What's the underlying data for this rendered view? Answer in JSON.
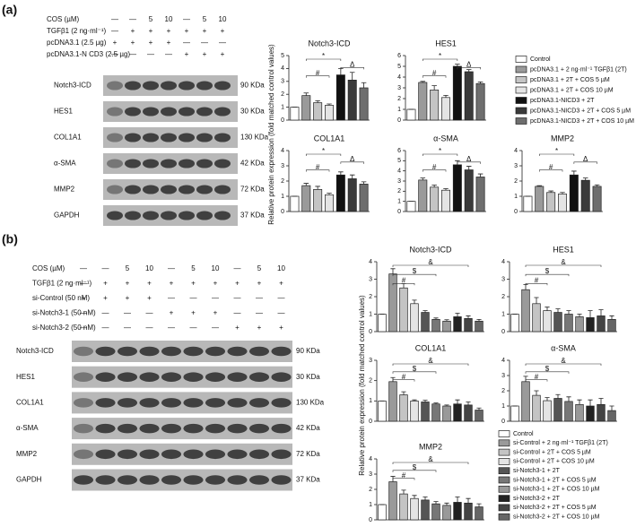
{
  "panels": [
    {
      "label": "(a)",
      "y_label": "Relative protein expression (fold matched control values)",
      "treatments": [
        {
          "name": "COS (µM)",
          "cells": [
            "—",
            "—",
            "5",
            "10",
            "—",
            "5",
            "10"
          ]
        },
        {
          "name": "TGFβ1 (2 ng·ml⁻¹)",
          "cells": [
            "—",
            "+",
            "+",
            "+",
            "+",
            "+",
            "+"
          ]
        },
        {
          "name": "pcDNA3.1 (2.5 µg)",
          "cells": [
            "+",
            "+",
            "+",
            "+",
            "—",
            "—",
            "—"
          ]
        },
        {
          "name": "pcDNA3.1-N CD3 (2.5 µg)",
          "cells": [
            "—",
            "—",
            "—",
            "—",
            "+",
            "+",
            "+"
          ]
        }
      ],
      "blots": [
        {
          "name": "Notch3-ICD",
          "size": "90 KDa"
        },
        {
          "name": "HES1",
          "size": "30 KDa"
        },
        {
          "name": "COL1A1",
          "size": "130 KDa"
        },
        {
          "name": "α-SMA",
          "size": "42 KDa"
        },
        {
          "name": "MMP2",
          "size": "72 KDa"
        },
        {
          "name": "GAPDH",
          "size": "37 KDa"
        }
      ],
      "legend": [
        {
          "name": "Control",
          "color": "#ffffff"
        },
        {
          "name": "pcDNA3.1 + 2 ng·ml⁻¹ TGFβ1 (2T)",
          "color": "#9a9a9a"
        },
        {
          "name": "pcDNA3.1 + 2T + COS 5 µM",
          "color": "#c4c4c4"
        },
        {
          "name": "pcDNA3.1 + 2T + COS 10 µM",
          "color": "#e4e4e4"
        },
        {
          "name": "pcDNA3.1-NICD3 + 2T",
          "color": "#111111"
        },
        {
          "name": "pcDNA3.1-NICD3 + 2T + COS 5 µM",
          "color": "#3a3a3a"
        },
        {
          "name": "pcDNA3.1-NICD3 + 2T + COS 10 µM",
          "color": "#6e6e6e"
        }
      ]
    },
    {
      "label": "(b)",
      "y_label": "Relative protein expression (fold matched control values)",
      "treatments": [
        {
          "name": "COS (µM)",
          "cells": [
            "—",
            "—",
            "5",
            "10",
            "—",
            "5",
            "10",
            "—",
            "5",
            "10"
          ]
        },
        {
          "name": "TGFβ1 (2 ng·ml⁻¹)",
          "cells": [
            "—",
            "+",
            "+",
            "+",
            "+",
            "+",
            "+",
            "+",
            "+",
            "+"
          ]
        },
        {
          "name": "si-Control (50 nM)",
          "cells": [
            "+",
            "+",
            "+",
            "+",
            "—",
            "—",
            "—",
            "—",
            "—",
            "—"
          ]
        },
        {
          "name": "si-Notch3-1 (50 nM)",
          "cells": [
            "—",
            "—",
            "—",
            "—",
            "+",
            "+",
            "+",
            "—",
            "—",
            "—"
          ]
        },
        {
          "name": "si-Notch3-2 (50 nM)",
          "cells": [
            "—",
            "—",
            "—",
            "—",
            "—",
            "—",
            "—",
            "+",
            "+",
            "+"
          ]
        }
      ],
      "blots": [
        {
          "name": "Notch3-ICD",
          "size": "90 KDa"
        },
        {
          "name": "HES1",
          "size": "30 KDa"
        },
        {
          "name": "COL1A1",
          "size": "130 KDa"
        },
        {
          "name": "α-SMA",
          "size": "42 KDa"
        },
        {
          "name": "MMP2",
          "size": "72 KDa"
        },
        {
          "name": "GAPDH",
          "size": "37 KDa"
        }
      ],
      "legend": [
        {
          "name": "Control",
          "color": "#ffffff"
        },
        {
          "name": "si-Control + 2 ng·ml⁻¹ TGFβ1 (2T)",
          "color": "#9a9a9a"
        },
        {
          "name": "si-Control + 2T + COS 5 µM",
          "color": "#c4c4c4"
        },
        {
          "name": "si-Control + 2T + COS 10 µM",
          "color": "#e4e4e4"
        },
        {
          "name": "si-Notch3-1 + 2T",
          "color": "#555555"
        },
        {
          "name": "si-Notch3-1 + 2T + COS 5 µM",
          "color": "#777777"
        },
        {
          "name": "si-Notch3-1 + 2T + COS 10 µM",
          "color": "#999999"
        },
        {
          "name": "si-Notch3-2 + 2T",
          "color": "#222222"
        },
        {
          "name": "si-Notch3-2 + 2T + COS 5 µM",
          "color": "#444444"
        },
        {
          "name": "si-Notch3-2 + 2T + COS 10 µM",
          "color": "#666666"
        }
      ]
    }
  ],
  "chart_data": [
    {
      "type": "bar",
      "title": "Notch3-ICD",
      "values": [
        1,
        1.9,
        1.35,
        1.15,
        3.5,
        3.1,
        2.5
      ],
      "errors": [
        0,
        0.2,
        0.15,
        0.1,
        0.5,
        0.6,
        0.4
      ],
      "ylim": [
        0,
        5
      ],
      "yticks": [
        0,
        1,
        2,
        3,
        4,
        5
      ],
      "annotations": [
        {
          "label": "#",
          "from": 1,
          "to": 3
        },
        {
          "label": "Δ",
          "from": 4,
          "to": 6
        },
        {
          "label": "*",
          "from": 1,
          "to": 4
        }
      ]
    },
    {
      "type": "bar",
      "title": "HES1",
      "values": [
        1,
        3.5,
        2.8,
        2.1,
        5,
        4.5,
        3.4
      ],
      "errors": [
        0,
        0.1,
        0.4,
        0.2,
        0.2,
        0.2,
        0.15
      ],
      "ylim": [
        0,
        6
      ],
      "yticks": [
        0,
        1,
        2,
        3,
        4,
        5,
        6
      ],
      "annotations": [
        {
          "label": "#",
          "from": 1,
          "to": 3
        },
        {
          "label": "Δ",
          "from": 4,
          "to": 6
        },
        {
          "label": "*",
          "from": 1,
          "to": 4
        }
      ]
    },
    {
      "type": "bar",
      "title": "COL1A1",
      "values": [
        1,
        1.7,
        1.45,
        1.1,
        2.4,
        2.15,
        1.8
      ],
      "errors": [
        0,
        0.15,
        0.2,
        0.1,
        0.2,
        0.25,
        0.15
      ],
      "ylim": [
        0,
        4
      ],
      "yticks": [
        0,
        1,
        2,
        3,
        4
      ],
      "annotations": [
        {
          "label": "#",
          "from": 1,
          "to": 3
        },
        {
          "label": "Δ",
          "from": 4,
          "to": 6
        },
        {
          "label": "*",
          "from": 1,
          "to": 4
        }
      ]
    },
    {
      "type": "bar",
      "title": "α-SMA",
      "values": [
        1,
        3.1,
        2.4,
        2.1,
        4.6,
        4.1,
        3.4
      ],
      "errors": [
        0,
        0.2,
        0.2,
        0.15,
        0.4,
        0.35,
        0.3
      ],
      "ylim": [
        0,
        6
      ],
      "yticks": [
        0,
        1,
        2,
        3,
        4,
        5,
        6
      ],
      "annotations": [
        {
          "label": "#",
          "from": 1,
          "to": 3
        },
        {
          "label": "Δ",
          "from": 4,
          "to": 6
        },
        {
          "label": "*",
          "from": 1,
          "to": 4
        }
      ]
    },
    {
      "type": "bar",
      "title": "MMP2",
      "values": [
        1,
        1.65,
        1.25,
        1.15,
        2.4,
        2.05,
        1.65
      ],
      "errors": [
        0,
        0.05,
        0.1,
        0.1,
        0.25,
        0.15,
        0.1
      ],
      "ylim": [
        0,
        4
      ],
      "yticks": [
        0,
        1,
        2,
        3,
        4
      ],
      "annotations": [
        {
          "label": "#",
          "from": 1,
          "to": 3
        },
        {
          "label": "Δ",
          "from": 4,
          "to": 6
        },
        {
          "label": "*",
          "from": 1,
          "to": 4
        }
      ]
    },
    {
      "type": "bar",
      "title": "Notch3-ICD",
      "values": [
        1,
        3.3,
        2.5,
        1.6,
        1.1,
        0.7,
        0.6,
        0.85,
        0.75,
        0.6
      ],
      "errors": [
        0,
        0.3,
        0.25,
        0.2,
        0.1,
        0.08,
        0.08,
        0.2,
        0.15,
        0.1
      ],
      "ylim": [
        0,
        4
      ],
      "yticks": [
        0,
        1,
        2,
        3,
        4
      ],
      "annotations": [
        {
          "label": "#",
          "from": 1,
          "to": 3
        },
        {
          "label": "$",
          "from": 1,
          "to": 5
        },
        {
          "label": "&",
          "from": 1,
          "to": 8
        }
      ]
    },
    {
      "type": "bar",
      "title": "HES1",
      "values": [
        1,
        2.4,
        1.6,
        1.2,
        1.1,
        1,
        0.85,
        0.8,
        0.9,
        0.7
      ],
      "errors": [
        0,
        0.3,
        0.35,
        0.2,
        0.2,
        0.2,
        0.15,
        0.4,
        0.35,
        0.2
      ],
      "ylim": [
        0,
        4
      ],
      "yticks": [
        0,
        1,
        2,
        3,
        4
      ],
      "annotations": [
        {
          "label": "#",
          "from": 1,
          "to": 3
        },
        {
          "label": "$",
          "from": 1,
          "to": 5
        },
        {
          "label": "&",
          "from": 1,
          "to": 8
        }
      ]
    },
    {
      "type": "bar",
      "title": "COL1A1",
      "values": [
        1,
        1.95,
        1.3,
        1,
        0.95,
        0.85,
        0.75,
        0.85,
        0.8,
        0.55
      ],
      "errors": [
        0,
        0.2,
        0.15,
        0.05,
        0.08,
        0.05,
        0.05,
        0.2,
        0.15,
        0.1
      ],
      "ylim": [
        0,
        3
      ],
      "yticks": [
        0,
        1,
        2,
        3
      ],
      "annotations": [
        {
          "label": "#",
          "from": 1,
          "to": 3
        },
        {
          "label": "$",
          "from": 1,
          "to": 5
        },
        {
          "label": "&",
          "from": 1,
          "to": 8
        }
      ]
    },
    {
      "type": "bar",
      "title": "α-SMA",
      "values": [
        1,
        2.6,
        1.7,
        1.35,
        1.5,
        1.3,
        1.1,
        1,
        1.1,
        0.7
      ],
      "errors": [
        0,
        0.35,
        0.3,
        0.2,
        0.25,
        0.3,
        0.3,
        0.4,
        0.4,
        0.3
      ],
      "ylim": [
        0,
        4
      ],
      "yticks": [
        0,
        1,
        2,
        3,
        4
      ],
      "annotations": [
        {
          "label": "#",
          "from": 1,
          "to": 3
        },
        {
          "label": "$",
          "from": 1,
          "to": 5
        },
        {
          "label": "&",
          "from": 1,
          "to": 8
        }
      ]
    },
    {
      "type": "bar",
      "title": "MMP2",
      "values": [
        1,
        2.5,
        1.7,
        1.4,
        1.3,
        1.05,
        0.95,
        1.15,
        1.1,
        0.85
      ],
      "errors": [
        0,
        0.35,
        0.25,
        0.2,
        0.2,
        0.15,
        0.15,
        0.35,
        0.3,
        0.2
      ],
      "ylim": [
        0,
        4
      ],
      "yticks": [
        0,
        1,
        2,
        3,
        4
      ],
      "annotations": [
        {
          "label": "#",
          "from": 1,
          "to": 3
        },
        {
          "label": "$",
          "from": 1,
          "to": 5
        },
        {
          "label": "&",
          "from": 1,
          "to": 8
        }
      ]
    }
  ]
}
